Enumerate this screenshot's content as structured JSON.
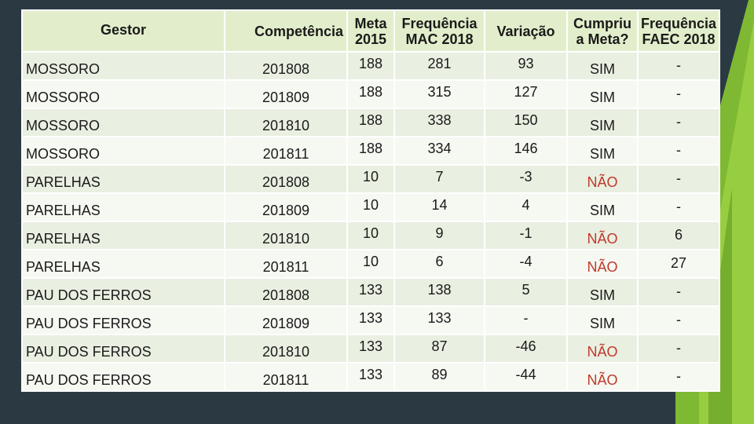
{
  "headers": {
    "gestor": "Gestor",
    "competencia": "Competência",
    "meta_line1": "Meta",
    "meta_line2": "2015",
    "freq_line1": "Frequência",
    "freq_line2": "MAC 2018",
    "variacao": "Variação",
    "cumpriu_line1": "Cumpriu",
    "cumpriu_line2": "a Meta?",
    "faec_line1": "Frequência",
    "faec_line2": "FAEC 2018"
  },
  "rows": [
    {
      "gestor": "MOSSORO",
      "competencia": "201808",
      "meta": "188",
      "freq": "281",
      "variacao": "93",
      "cumpriu": "SIM",
      "faec": "-"
    },
    {
      "gestor": "MOSSORO",
      "competencia": "201809",
      "meta": "188",
      "freq": "315",
      "variacao": "127",
      "cumpriu": "SIM",
      "faec": "-"
    },
    {
      "gestor": "MOSSORO",
      "competencia": "201810",
      "meta": "188",
      "freq": "338",
      "variacao": "150",
      "cumpriu": "SIM",
      "faec": "-"
    },
    {
      "gestor": "MOSSORO",
      "competencia": "201811",
      "meta": "188",
      "freq": "334",
      "variacao": "146",
      "cumpriu": "SIM",
      "faec": "-"
    },
    {
      "gestor": "PARELHAS",
      "competencia": "201808",
      "meta": "10",
      "freq": "7",
      "variacao": "-3",
      "cumpriu": "NÃO",
      "faec": "-"
    },
    {
      "gestor": "PARELHAS",
      "competencia": "201809",
      "meta": "10",
      "freq": "14",
      "variacao": "4",
      "cumpriu": "SIM",
      "faec": "-"
    },
    {
      "gestor": "PARELHAS",
      "competencia": "201810",
      "meta": "10",
      "freq": "9",
      "variacao": "-1",
      "cumpriu": "NÃO",
      "faec": "6"
    },
    {
      "gestor": "PARELHAS",
      "competencia": "201811",
      "meta": "10",
      "freq": "6",
      "variacao": "-4",
      "cumpriu": "NÃO",
      "faec": "27"
    },
    {
      "gestor": "PAU DOS FERROS",
      "competencia": "201808",
      "meta": "133",
      "freq": "138",
      "variacao": "5",
      "cumpriu": "SIM",
      "faec": "-"
    },
    {
      "gestor": "PAU DOS FERROS",
      "competencia": "201809",
      "meta": "133",
      "freq": "133",
      "variacao": "-",
      "cumpriu": "SIM",
      "faec": "-"
    },
    {
      "gestor": "PAU DOS FERROS",
      "competencia": "201810",
      "meta": "133",
      "freq": "87",
      "variacao": "-46",
      "cumpriu": "NÃO",
      "faec": "-"
    },
    {
      "gestor": "PAU DOS FERROS",
      "competencia": "201811",
      "meta": "133",
      "freq": "89",
      "variacao": "-44",
      "cumpriu": "NÃO",
      "faec": "-"
    }
  ],
  "colors": {
    "sim": "#1a1a1a",
    "nao": "#c0392b",
    "header_bg": "#e2eecb",
    "accent": "#7fb832"
  }
}
